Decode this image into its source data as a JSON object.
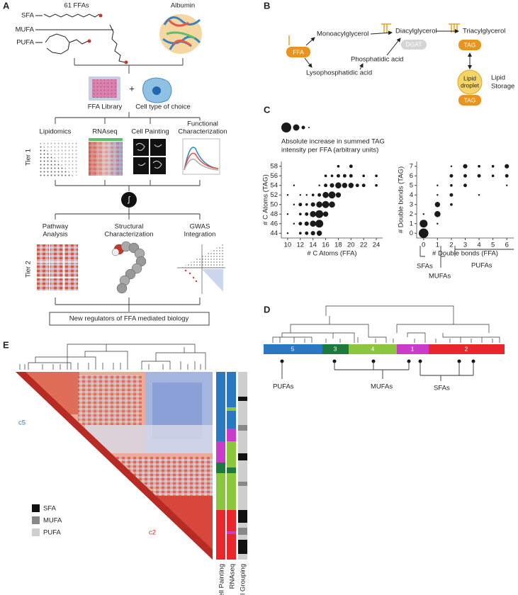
{
  "panel_labels": [
    "A",
    "B",
    "C",
    "D",
    "E"
  ],
  "panel_a": {
    "header_ffas": "61 FFAs",
    "header_albumin": "Albumin",
    "fa_classes": [
      "SFA",
      "MUFA",
      "PUFA"
    ],
    "library": "FFA Library",
    "plus": "+",
    "cell": "Cell type of choice",
    "tier1": "Tier 1",
    "tier1_assays": [
      [
        "Lipidomics"
      ],
      [
        "RNAseq"
      ],
      [
        "Cell Painting"
      ],
      [
        "Functional",
        "Characterization"
      ]
    ],
    "integrate": "∫",
    "tier2": "Tier 2",
    "tier2_assays": [
      [
        "Pathway",
        "Analysis"
      ],
      [
        "Structural",
        "Characterization"
      ],
      [
        "GWAS",
        "Integration"
      ]
    ],
    "result": "New regulators of FFA mediated biology"
  },
  "panel_b": {
    "ffa": "FFA",
    "monoacylglycerol": "Monoacylglycerol",
    "lysophosphatidic_acid": "Lysophosphatidic acid",
    "diacylglycerol": "Diacylglycerol",
    "dgat": "DGAT",
    "phosphatidic_acid": "Phosphatidic acid",
    "triacylglycerol": "Triacylglycerol",
    "tag": "TAG",
    "lipid_droplet": [
      "Lipid",
      "droplet"
    ],
    "tag_storage": "TAG",
    "lipid_storage": [
      "Lipid",
      "Storage"
    ]
  },
  "panel_c_legend": [
    "Absolute increase in summed TAG",
    "intensity per FFA (arbitrary units)"
  ],
  "chart_data": [
    {
      "type": "scatter",
      "xlabel": "# C Atoms (FFA)",
      "ylabel": "# C Atoms (TAG)",
      "color": "#1a1a1a",
      "xlim": [
        9,
        25
      ],
      "xticks": [
        10,
        12,
        14,
        16,
        18,
        20,
        22,
        24
      ],
      "ylim": [
        43,
        59
      ],
      "yticks": [
        44,
        46,
        48,
        50,
        52,
        54,
        56,
        58
      ],
      "x": [
        10,
        10,
        10,
        11,
        11,
        12,
        12,
        12,
        12,
        12,
        13,
        13,
        13,
        13,
        14,
        14,
        14,
        14,
        14,
        15,
        15,
        15,
        15,
        15,
        15,
        16,
        16,
        16,
        16,
        16,
        17,
        17,
        17,
        17,
        18,
        18,
        18,
        18,
        19,
        19,
        20,
        20,
        20,
        21,
        22,
        22,
        24,
        24,
        13,
        11
      ],
      "y": [
        44,
        48,
        52,
        46,
        50,
        44,
        46,
        48,
        50,
        52,
        44,
        46,
        48,
        50,
        44,
        46,
        48,
        50,
        52,
        44,
        46,
        48,
        50,
        52,
        54,
        48,
        50,
        52,
        54,
        56,
        50,
        52,
        54,
        56,
        52,
        54,
        56,
        58,
        54,
        56,
        54,
        56,
        58,
        54,
        54,
        56,
        54,
        56,
        52,
        54
      ],
      "sizes": [
        1,
        1,
        1,
        1,
        1,
        2,
        3,
        2,
        3,
        1,
        3,
        4,
        3,
        2,
        4,
        6,
        6,
        4,
        2,
        5,
        8,
        8,
        6,
        3,
        1,
        5,
        7,
        6,
        3,
        2,
        6,
        7,
        4,
        2,
        5,
        6,
        3,
        2,
        5,
        3,
        5,
        3,
        3,
        3,
        3,
        2,
        2,
        2,
        1,
        1
      ]
    },
    {
      "type": "scatter",
      "xlabel": "# Double bonds (FFA)",
      "ylabel": "# Double bonds (TAG)",
      "color": "#1a1a1a",
      "xlim": [
        -0.5,
        6.5
      ],
      "xticks": [
        0,
        1,
        2,
        3,
        4,
        5,
        6
      ],
      "ylim": [
        -0.5,
        7.5
      ],
      "yticks": [
        0,
        1,
        2,
        3,
        4,
        5,
        6,
        7
      ],
      "x": [
        0,
        0,
        0,
        1,
        1,
        1,
        1,
        1,
        2,
        2,
        2,
        2,
        2,
        3,
        3,
        3,
        4,
        4,
        4,
        5,
        5,
        6,
        6,
        6
      ],
      "y": [
        0,
        1,
        2,
        1,
        2,
        3,
        4,
        5,
        3,
        4,
        5,
        6,
        7,
        5,
        6,
        7,
        4,
        6,
        7,
        6,
        7,
        5,
        6,
        7
      ],
      "sizes": [
        10,
        8,
        1,
        1,
        6,
        5,
        1,
        1,
        2,
        3,
        2,
        3,
        1,
        3,
        3,
        4,
        1,
        3,
        2,
        2,
        2,
        1,
        3,
        4
      ]
    }
  ],
  "panel_c_groups": [
    "SFAs",
    "MUFAs",
    "PUFAs"
  ],
  "panel_d": {
    "clusters": [
      "5",
      "3",
      "4",
      "1",
      "2"
    ],
    "groups": [
      "PUFAs",
      "MUFAs",
      "SFAs"
    ]
  },
  "panel_e": {
    "c5": "c5",
    "c2": "c2",
    "legend": [
      "SFA",
      "MUFA",
      "PUFA"
    ],
    "tracks": [
      "Cell Painting",
      "RNAseq",
      "Classical Grouping"
    ]
  }
}
